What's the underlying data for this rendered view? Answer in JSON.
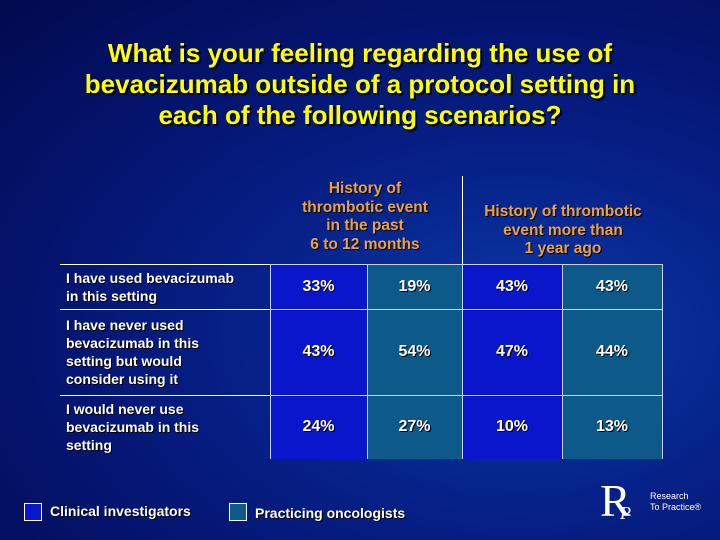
{
  "title": {
    "line1": "What is your feeling regarding the use of",
    "line2": "bevacizumab outside of a protocol setting in",
    "line3": "each of the following scenarios?"
  },
  "columns": [
    {
      "lines": [
        "History of",
        "thrombotic event",
        "in the past",
        "6 to 12 months"
      ]
    },
    {
      "lines": [
        "History of thrombotic",
        "event more than",
        "1 year ago"
      ]
    }
  ],
  "rows": [
    {
      "label_lines": [
        "I have used bevacizumab",
        "in this setting"
      ],
      "values": [
        "33%",
        "19%",
        "43%",
        "43%"
      ]
    },
    {
      "label_lines": [
        "I have never used",
        "bevacizumab in this",
        "setting but would",
        "consider using it"
      ],
      "values": [
        "43%",
        "54%",
        "47%",
        "44%"
      ]
    },
    {
      "label_lines": [
        "I would never use",
        "bevacizumab in this",
        "setting"
      ],
      "values": [
        "24%",
        "27%",
        "10%",
        "13%"
      ]
    }
  ],
  "legend": {
    "clinical": "Clinical investigators",
    "practicing": "Practicing oncologists"
  },
  "logo": {
    "r": "R",
    "p": "P",
    "line1": "Research",
    "line2": "To Practice®"
  },
  "colors": {
    "clinical_fill": "#0a16cc",
    "practicing_fill": "#0d5a8a",
    "title": "#ffff00",
    "column_header": "#f0a040"
  }
}
